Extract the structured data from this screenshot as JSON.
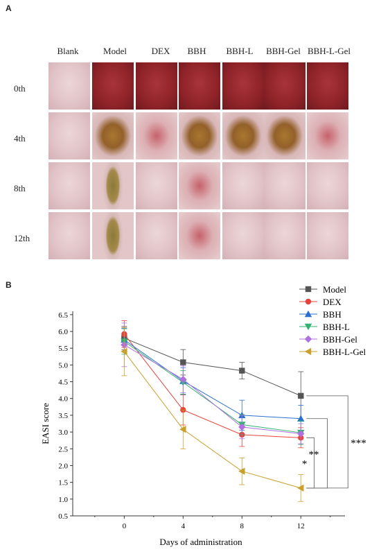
{
  "panel_a": {
    "label": "A",
    "columns": [
      "Blank",
      "Model",
      "DEX",
      "BBH",
      "BBH-L",
      "BBH-Gel",
      "BBH-L-Gel"
    ],
    "rows": [
      "0th",
      "4th",
      "8th",
      "12th"
    ]
  },
  "panel_b": {
    "label": "B"
  },
  "chart_data": {
    "type": "line",
    "xlabel": "Days of administration",
    "ylabel": "EASI score",
    "x": [
      0,
      4,
      8,
      12
    ],
    "xlim": [
      -3.5,
      15
    ],
    "ylim": [
      0.5,
      6.6
    ],
    "yticks": [
      0.5,
      1.0,
      1.5,
      2.0,
      2.5,
      3.0,
      3.5,
      4.0,
      4.5,
      5.0,
      5.5,
      6.0,
      6.5
    ],
    "xticks": [
      0,
      4,
      8,
      12
    ],
    "grid": false,
    "legend_position": "top-right",
    "series": [
      {
        "name": "Model",
        "color": "#555555",
        "marker": "square",
        "values": [
          5.8,
          5.08,
          4.83,
          4.08
        ],
        "errors": [
          0.35,
          0.38,
          0.25,
          0.72
        ]
      },
      {
        "name": "DEX",
        "color": "#e8413a",
        "marker": "circle",
        "values": [
          5.92,
          3.66,
          2.92,
          2.83
        ],
        "errors": [
          0.4,
          0.45,
          0.35,
          0.3
        ]
      },
      {
        "name": "BBH",
        "color": "#2a6fcf",
        "marker": "triangle-up",
        "values": [
          5.75,
          4.52,
          3.5,
          3.4
        ],
        "errors": [
          0.35,
          0.4,
          0.45,
          0.4
        ]
      },
      {
        "name": "BBH-L",
        "color": "#2fb36e",
        "marker": "triangle-down",
        "values": [
          5.7,
          4.48,
          3.22,
          2.98
        ],
        "errors": [
          0.38,
          0.35,
          0.3,
          0.35
        ]
      },
      {
        "name": "BBH-Gel",
        "color": "#b06fe0",
        "marker": "diamond",
        "values": [
          5.6,
          4.57,
          3.15,
          2.95
        ],
        "errors": [
          0.65,
          0.4,
          0.35,
          0.3
        ]
      },
      {
        "name": "BBH-L-Gel",
        "color": "#c9a02a",
        "marker": "triangle-left",
        "values": [
          5.4,
          3.08,
          1.83,
          1.33
        ],
        "errors": [
          0.72,
          0.58,
          0.4,
          0.4
        ]
      }
    ],
    "annotations": [
      {
        "text": "*",
        "between": [
          "BBH-L-Gel",
          "DEX"
        ]
      },
      {
        "text": "**",
        "between": [
          "BBH-L-Gel",
          "BBH"
        ]
      },
      {
        "text": "***",
        "between": [
          "BBH-L-Gel",
          "Model"
        ]
      }
    ],
    "colors": {
      "skin_pale": "#e9cfd0",
      "skin_red": "#9a2a2e",
      "scab": "#9b6a2f"
    }
  }
}
